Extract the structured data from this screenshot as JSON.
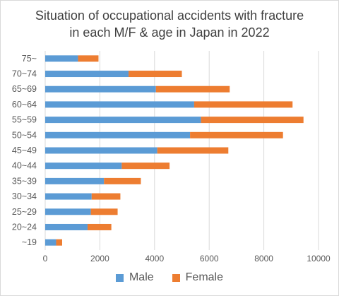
{
  "chart_data": {
    "type": "bar",
    "orientation": "horizontal",
    "stacked": true,
    "title": "Situation of occupational accidents with fracture",
    "subtitle": "in each M/F & age in Japan in 2022",
    "categories": [
      "75~",
      "70~74",
      "65~69",
      "60~64",
      "55~59",
      "50~54",
      "45~49",
      "40~44",
      "35~39",
      "30~34",
      "25~29",
      "20~24",
      "~19"
    ],
    "series": [
      {
        "name": "Male",
        "color": "#5b9bd5",
        "values": [
          1200,
          3050,
          4050,
          5450,
          5700,
          5300,
          4100,
          2800,
          2150,
          1700,
          1670,
          1550,
          400
        ]
      },
      {
        "name": "Female",
        "color": "#ed7d31",
        "values": [
          750,
          1950,
          2700,
          3600,
          3750,
          3400,
          2600,
          1750,
          1350,
          1050,
          980,
          870,
          220
        ]
      }
    ],
    "xlim": [
      0,
      10000
    ],
    "xticks": [
      "0",
      "2000",
      "4000",
      "6000",
      "8000",
      "10000"
    ],
    "grid": true,
    "legend": "bottom"
  }
}
